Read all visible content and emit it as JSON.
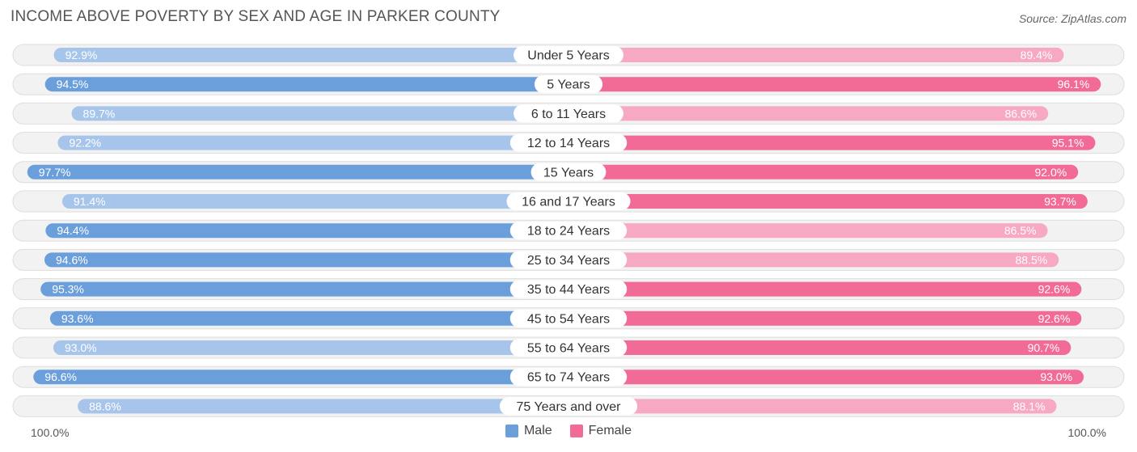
{
  "title": "INCOME ABOVE POVERTY BY SEX AND AGE IN PARKER COUNTY",
  "source": "Source: ZipAtlas.com",
  "colors": {
    "male_strong": "#6a9fdc",
    "male_light": "#a7c5eb",
    "female_strong": "#f26a96",
    "female_light": "#f7a8c2",
    "track": "#f2f2f2",
    "track_border": "#dddddd"
  },
  "legend": {
    "male": "Male",
    "female": "Female"
  },
  "axis": {
    "left": "100.0%",
    "right": "100.0%"
  },
  "chart_data": {
    "type": "bar",
    "orientation": "horizontal-diverging",
    "title": "INCOME ABOVE POVERTY BY SEX AND AGE IN PARKER COUNTY",
    "xlim": [
      0,
      100
    ],
    "categories": [
      "Under 5 Years",
      "5 Years",
      "6 to 11 Years",
      "12 to 14 Years",
      "15 Years",
      "16 and 17 Years",
      "18 to 24 Years",
      "25 to 34 Years",
      "35 to 44 Years",
      "45 to 54 Years",
      "55 to 64 Years",
      "65 to 74 Years",
      "75 Years and over"
    ],
    "series": [
      {
        "name": "Male",
        "values": [
          92.9,
          94.5,
          89.7,
          92.2,
          97.7,
          91.4,
          94.4,
          94.6,
          95.3,
          93.6,
          93.0,
          96.6,
          88.6
        ],
        "labels": [
          "92.9%",
          "94.5%",
          "89.7%",
          "92.2%",
          "97.7%",
          "91.4%",
          "94.4%",
          "94.6%",
          "95.3%",
          "93.6%",
          "93.0%",
          "96.6%",
          "88.6%"
        ]
      },
      {
        "name": "Female",
        "values": [
          89.4,
          96.1,
          86.6,
          95.1,
          92.0,
          93.7,
          86.5,
          88.5,
          92.6,
          92.6,
          90.7,
          93.0,
          88.1
        ],
        "labels": [
          "89.4%",
          "96.1%",
          "86.6%",
          "95.1%",
          "92.0%",
          "93.7%",
          "86.5%",
          "88.5%",
          "92.6%",
          "92.6%",
          "90.7%",
          "93.0%",
          "88.1%"
        ]
      }
    ],
    "legend": "bottom-center"
  }
}
